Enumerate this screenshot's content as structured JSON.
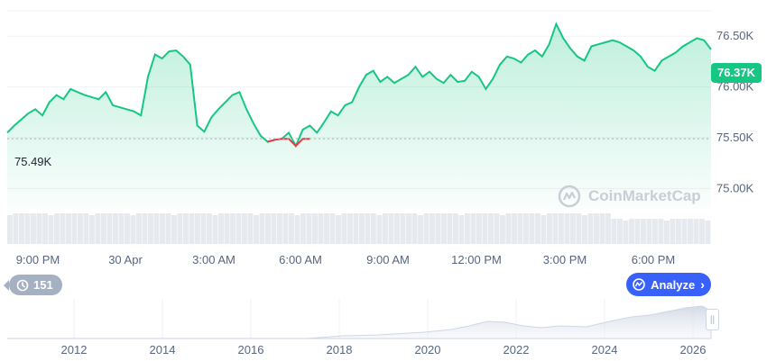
{
  "chart_data": {
    "type": "area",
    "y_ticks": [
      75.0,
      75.5,
      76.0,
      76.5
    ],
    "y_tick_labels": [
      "75.00K",
      "75.50K",
      "76.00K",
      "76.50K"
    ],
    "ylim": [
      74.8,
      76.75
    ],
    "x_tick_labels": [
      "9:00 PM",
      "30 Apr",
      "3:00 AM",
      "6:00 AM",
      "9:00 AM",
      "12:00 PM",
      "3:00 PM",
      "6:00 PM"
    ],
    "open_value": 75.49,
    "open_label": "75.49K",
    "last_label": "76.37K",
    "series": [
      {
        "x": [
          0,
          2,
          4,
          6,
          8,
          10,
          12,
          14,
          16,
          18,
          20,
          22,
          24,
          26,
          28,
          30,
          32,
          34,
          36,
          38,
          40,
          42,
          44,
          46,
          48,
          50,
          52,
          54,
          56,
          58,
          60,
          62,
          64,
          66,
          68,
          70,
          72,
          74,
          76,
          78,
          80,
          82,
          84,
          86,
          88,
          90,
          92,
          94,
          96,
          98,
          100,
          102,
          104,
          106,
          108,
          110,
          112,
          114,
          116,
          118,
          120,
          122,
          124,
          126,
          128,
          130,
          132,
          134,
          136,
          138,
          140,
          142,
          144,
          146,
          148,
          150,
          152,
          154,
          156,
          158,
          160,
          162,
          164,
          166,
          168,
          170,
          172,
          174,
          176,
          178,
          180,
          182,
          184,
          186,
          188,
          190,
          192,
          194,
          196,
          198,
          200
        ],
        "values": [
          75.55,
          75.62,
          75.68,
          75.74,
          75.78,
          75.72,
          75.85,
          75.92,
          75.88,
          75.98,
          75.95,
          75.92,
          75.9,
          75.88,
          75.95,
          75.82,
          75.8,
          75.78,
          75.76,
          75.72,
          76.1,
          76.32,
          76.28,
          76.35,
          76.36,
          76.3,
          76.22,
          75.62,
          75.56,
          75.7,
          75.78,
          75.85,
          75.92,
          75.95,
          75.78,
          75.64,
          75.52,
          75.46,
          75.48,
          75.49,
          75.55,
          75.42,
          75.58,
          75.62,
          75.55,
          75.65,
          75.76,
          75.72,
          75.82,
          75.85,
          76.0,
          76.12,
          76.16,
          76.05,
          76.1,
          76.04,
          76.08,
          76.12,
          76.2,
          76.1,
          76.15,
          76.08,
          76.04,
          76.12,
          76.05,
          76.06,
          76.15,
          76.1,
          75.98,
          76.08,
          76.22,
          76.3,
          76.28,
          76.24,
          76.32,
          76.36,
          76.3,
          76.42,
          76.62,
          76.48,
          76.38,
          76.3,
          76.26,
          76.4,
          76.42,
          76.44,
          76.46,
          76.44,
          76.4,
          76.36,
          76.3,
          76.2,
          76.16,
          76.26,
          76.3,
          76.34,
          76.4,
          76.44,
          76.48,
          76.46,
          76.37
        ]
      }
    ],
    "negative_range": [
      74,
      86
    ]
  },
  "volume_bars": 120,
  "navigator": {
    "year_labels": [
      "2012",
      "2014",
      "2016",
      "2018",
      "2020",
      "2022",
      "2024",
      "2026"
    ]
  },
  "watermark_text": "CoinMarketCap",
  "history_count": "151",
  "analyze_label": "Analyze",
  "colors": {
    "up": "#16c784",
    "down": "#ea3943",
    "accent": "#3861fb"
  }
}
